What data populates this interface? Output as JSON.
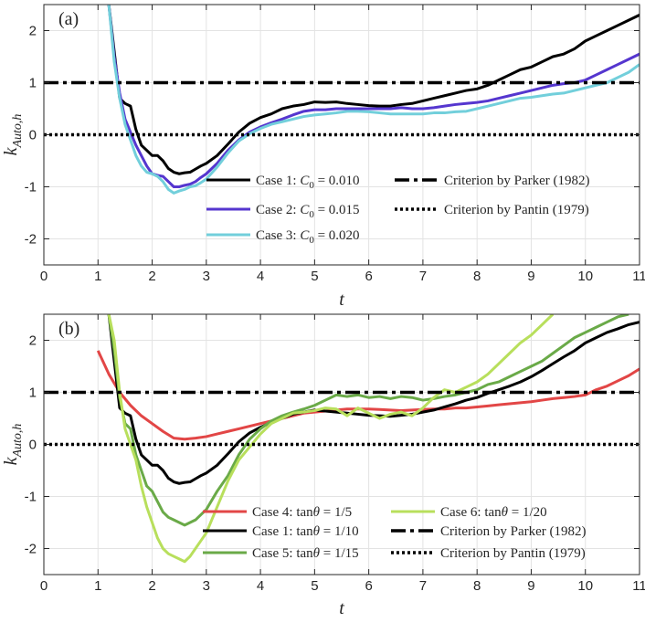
{
  "chart_data": [
    {
      "type": "line",
      "panel_label": "(a)",
      "xlabel": "t",
      "ylabel": "k",
      "ylabel_sub": "Auto,h",
      "xlim": [
        0,
        11
      ],
      "ylim": [
        -2.5,
        2.5
      ],
      "xticks": [
        "0",
        "1",
        "2",
        "3",
        "4",
        "5",
        "6",
        "7",
        "8",
        "9",
        "10",
        "11"
      ],
      "yticks": [
        "-2",
        "-1",
        "0",
        "1",
        "2"
      ],
      "grid": true,
      "legend_position": "bottom-center, two columns",
      "series": [
        {
          "name": "Case 1: C0 = 0.010",
          "label_prefix": "Case 1: ",
          "label_var": "C",
          "label_sub": "0",
          "label_suffix": " = 0.010",
          "color": "#000000",
          "style": "solid",
          "legend_col": 0,
          "legend_row": 0,
          "x": [
            1.2,
            1.3,
            1.4,
            1.5,
            1.6,
            1.7,
            1.8,
            1.9,
            2.0,
            2.1,
            2.2,
            2.3,
            2.4,
            2.5,
            2.6,
            2.7,
            2.8,
            2.9,
            3.0,
            3.2,
            3.4,
            3.6,
            3.8,
            4.0,
            4.2,
            4.4,
            4.6,
            4.8,
            5.0,
            5.2,
            5.4,
            5.6,
            5.8,
            6.0,
            6.2,
            6.4,
            6.6,
            6.8,
            7.0,
            7.2,
            7.4,
            7.6,
            7.8,
            8.0,
            8.2,
            8.4,
            8.6,
            8.8,
            9.0,
            9.2,
            9.4,
            9.6,
            9.8,
            10.0,
            10.2,
            10.4,
            10.6,
            10.8,
            11.0
          ],
          "y": [
            2.5,
            1.6,
            0.7,
            0.6,
            0.55,
            0.1,
            -0.2,
            -0.3,
            -0.4,
            -0.4,
            -0.5,
            -0.65,
            -0.72,
            -0.75,
            -0.73,
            -0.72,
            -0.66,
            -0.6,
            -0.55,
            -0.4,
            -0.18,
            0.05,
            0.22,
            0.33,
            0.4,
            0.5,
            0.55,
            0.58,
            0.63,
            0.62,
            0.63,
            0.6,
            0.58,
            0.56,
            0.55,
            0.55,
            0.58,
            0.6,
            0.65,
            0.7,
            0.75,
            0.8,
            0.85,
            0.88,
            0.95,
            1.05,
            1.15,
            1.25,
            1.3,
            1.4,
            1.5,
            1.55,
            1.65,
            1.8,
            1.9,
            2.0,
            2.1,
            2.2,
            2.3
          ]
        },
        {
          "name": "Case 2: C0 = 0.015",
          "label_prefix": "Case 2: ",
          "label_var": "C",
          "label_sub": "0",
          "label_suffix": " = 0.015",
          "color": "#5536cf",
          "style": "solid",
          "legend_col": 0,
          "legend_row": 1,
          "x": [
            1.2,
            1.3,
            1.4,
            1.5,
            1.6,
            1.7,
            1.8,
            1.9,
            2.0,
            2.1,
            2.2,
            2.3,
            2.4,
            2.5,
            2.6,
            2.7,
            2.8,
            2.9,
            3.0,
            3.2,
            3.4,
            3.6,
            3.8,
            4.0,
            4.2,
            4.4,
            4.6,
            4.8,
            5.0,
            5.2,
            5.4,
            5.6,
            5.8,
            6.0,
            6.2,
            6.4,
            6.6,
            6.8,
            7.0,
            7.2,
            7.4,
            7.6,
            7.8,
            8.0,
            8.2,
            8.4,
            8.6,
            8.8,
            9.0,
            9.2,
            9.4,
            9.6,
            9.8,
            10.0,
            10.2,
            10.4,
            10.6,
            10.8,
            11.0
          ],
          "y": [
            2.5,
            1.5,
            0.8,
            0.3,
            0.05,
            -0.2,
            -0.4,
            -0.6,
            -0.75,
            -0.78,
            -0.8,
            -0.9,
            -1.0,
            -1.0,
            -0.97,
            -0.95,
            -0.9,
            -0.82,
            -0.75,
            -0.55,
            -0.3,
            -0.1,
            0.05,
            0.15,
            0.23,
            0.3,
            0.38,
            0.45,
            0.48,
            0.48,
            0.5,
            0.5,
            0.5,
            0.5,
            0.5,
            0.5,
            0.52,
            0.5,
            0.5,
            0.52,
            0.55,
            0.58,
            0.6,
            0.62,
            0.65,
            0.7,
            0.75,
            0.8,
            0.85,
            0.9,
            0.95,
            0.98,
            1.0,
            1.05,
            1.15,
            1.25,
            1.35,
            1.45,
            1.55
          ]
        },
        {
          "name": "Case 3: C0 = 0.020",
          "label_prefix": "Case 3: ",
          "label_var": "C",
          "label_sub": "0",
          "label_suffix": " = 0.020",
          "color": "#72cfdb",
          "style": "solid",
          "legend_col": 0,
          "legend_row": 2,
          "x": [
            1.2,
            1.3,
            1.4,
            1.5,
            1.6,
            1.7,
            1.8,
            1.9,
            2.0,
            2.1,
            2.2,
            2.3,
            2.4,
            2.5,
            2.6,
            2.7,
            2.8,
            2.9,
            3.0,
            3.2,
            3.4,
            3.6,
            3.8,
            4.0,
            4.2,
            4.4,
            4.6,
            4.8,
            5.0,
            5.2,
            5.4,
            5.6,
            5.8,
            6.0,
            6.2,
            6.4,
            6.6,
            6.8,
            7.0,
            7.2,
            7.4,
            7.6,
            7.8,
            8.0,
            8.2,
            8.4,
            8.6,
            8.8,
            9.0,
            9.2,
            9.4,
            9.6,
            9.8,
            10.0,
            10.2,
            10.4,
            10.6,
            10.8,
            11.0
          ],
          "y": [
            2.5,
            1.4,
            0.7,
            0.2,
            -0.1,
            -0.4,
            -0.6,
            -0.72,
            -0.75,
            -0.8,
            -0.9,
            -1.05,
            -1.12,
            -1.08,
            -1.05,
            -1.0,
            -0.98,
            -0.92,
            -0.85,
            -0.62,
            -0.35,
            -0.12,
            0.02,
            0.12,
            0.2,
            0.25,
            0.3,
            0.35,
            0.38,
            0.4,
            0.42,
            0.45,
            0.45,
            0.44,
            0.42,
            0.4,
            0.4,
            0.4,
            0.4,
            0.42,
            0.42,
            0.44,
            0.45,
            0.5,
            0.55,
            0.6,
            0.65,
            0.7,
            0.72,
            0.75,
            0.78,
            0.8,
            0.85,
            0.9,
            0.95,
            1.0,
            1.1,
            1.2,
            1.35
          ]
        },
        {
          "name": "Criterion by Parker (1982)",
          "color": "#000000",
          "style": "dashdot",
          "legend_col": 1,
          "legend_row": 0,
          "x": [
            0,
            11
          ],
          "y": [
            1,
            1
          ]
        },
        {
          "name": "Criterion by Pantin (1979)",
          "color": "#000000",
          "style": "dotted",
          "legend_col": 1,
          "legend_row": 1,
          "x": [
            0,
            11
          ],
          "y": [
            0,
            0
          ]
        }
      ]
    },
    {
      "type": "line",
      "panel_label": "(b)",
      "xlabel": "t",
      "ylabel": "k",
      "ylabel_sub": "Auto,h",
      "xlim": [
        0,
        11
      ],
      "ylim": [
        -2.5,
        2.5
      ],
      "xticks": [
        "0",
        "1",
        "2",
        "3",
        "4",
        "5",
        "6",
        "7",
        "8",
        "9",
        "10",
        "11"
      ],
      "yticks": [
        "-2",
        "-1",
        "0",
        "1",
        "2"
      ],
      "grid": true,
      "legend_position": "bottom-center, two columns",
      "series": [
        {
          "name": "Case 4: tanθ = 1/5",
          "label_prefix": "Case 4: tan",
          "label_var": "θ",
          "label_sub": "",
          "label_suffix": " = 1/5",
          "color": "#e24646",
          "style": "solid",
          "legend_col": 0,
          "legend_row": 0,
          "x": [
            1.0,
            1.2,
            1.4,
            1.6,
            1.8,
            2.0,
            2.2,
            2.4,
            2.6,
            2.8,
            3.0,
            3.2,
            3.4,
            3.6,
            3.8,
            4.0,
            4.2,
            4.4,
            4.6,
            4.8,
            5.0,
            5.2,
            5.4,
            5.6,
            5.8,
            6.0,
            6.2,
            6.4,
            6.6,
            6.8,
            7.0,
            7.2,
            7.4,
            7.6,
            7.8,
            8.0,
            8.2,
            8.4,
            8.6,
            8.8,
            9.0,
            9.2,
            9.4,
            9.6,
            9.8,
            10.0,
            10.2,
            10.4,
            10.6,
            10.8,
            11.0
          ],
          "y": [
            1.8,
            1.35,
            1.0,
            0.75,
            0.55,
            0.4,
            0.25,
            0.12,
            0.1,
            0.12,
            0.15,
            0.2,
            0.25,
            0.3,
            0.35,
            0.4,
            0.45,
            0.5,
            0.55,
            0.6,
            0.62,
            0.64,
            0.66,
            0.68,
            0.68,
            0.68,
            0.67,
            0.66,
            0.65,
            0.66,
            0.67,
            0.68,
            0.68,
            0.7,
            0.7,
            0.72,
            0.74,
            0.76,
            0.78,
            0.8,
            0.82,
            0.85,
            0.88,
            0.9,
            0.92,
            0.95,
            1.05,
            1.12,
            1.22,
            1.32,
            1.45
          ]
        },
        {
          "name": "Case 1: tanθ = 1/10",
          "label_prefix": "Case 1: tan",
          "label_var": "θ",
          "label_sub": "",
          "label_suffix": " = 1/10",
          "color": "#000000",
          "style": "solid",
          "legend_col": 0,
          "legend_row": 1,
          "x": [
            1.2,
            1.3,
            1.4,
            1.5,
            1.6,
            1.7,
            1.8,
            1.9,
            2.0,
            2.1,
            2.2,
            2.3,
            2.4,
            2.5,
            2.6,
            2.7,
            2.8,
            2.9,
            3.0,
            3.2,
            3.4,
            3.6,
            3.8,
            4.0,
            4.2,
            4.4,
            4.6,
            4.8,
            5.0,
            5.2,
            5.4,
            5.6,
            5.8,
            6.0,
            6.2,
            6.4,
            6.6,
            6.8,
            7.0,
            7.2,
            7.4,
            7.6,
            7.8,
            8.0,
            8.2,
            8.4,
            8.6,
            8.8,
            9.0,
            9.2,
            9.4,
            9.6,
            9.8,
            10.0,
            10.2,
            10.4,
            10.6,
            10.8,
            11.0
          ],
          "y": [
            2.5,
            1.6,
            0.7,
            0.6,
            0.55,
            0.1,
            -0.2,
            -0.3,
            -0.4,
            -0.4,
            -0.5,
            -0.65,
            -0.72,
            -0.75,
            -0.73,
            -0.72,
            -0.66,
            -0.6,
            -0.55,
            -0.4,
            -0.18,
            0.05,
            0.22,
            0.33,
            0.42,
            0.5,
            0.58,
            0.62,
            0.66,
            0.64,
            0.62,
            0.6,
            0.58,
            0.56,
            0.55,
            0.54,
            0.56,
            0.58,
            0.62,
            0.66,
            0.72,
            0.78,
            0.85,
            0.9,
            0.98,
            1.05,
            1.12,
            1.2,
            1.3,
            1.42,
            1.55,
            1.68,
            1.8,
            1.95,
            2.05,
            2.15,
            2.22,
            2.3,
            2.35
          ]
        },
        {
          "name": "Case 5: tanθ = 1/15",
          "label_prefix": "Case 5: tan",
          "label_var": "θ",
          "label_sub": "",
          "label_suffix": " = 1/15",
          "color": "#6aaa48",
          "style": "solid",
          "legend_col": 0,
          "legend_row": 2,
          "x": [
            1.2,
            1.3,
            1.4,
            1.5,
            1.6,
            1.7,
            1.8,
            1.9,
            2.0,
            2.1,
            2.2,
            2.3,
            2.4,
            2.5,
            2.6,
            2.7,
            2.8,
            2.9,
            3.0,
            3.2,
            3.4,
            3.6,
            3.8,
            4.0,
            4.2,
            4.4,
            4.6,
            4.8,
            5.0,
            5.2,
            5.4,
            5.6,
            5.8,
            6.0,
            6.2,
            6.4,
            6.6,
            6.8,
            7.0,
            7.2,
            7.4,
            7.6,
            7.8,
            8.0,
            8.2,
            8.4,
            8.6,
            8.8,
            9.0,
            9.2,
            9.4,
            9.6,
            9.8,
            10.0,
            10.2,
            10.4,
            10.6,
            10.8
          ],
          "y": [
            2.5,
            1.8,
            0.9,
            0.4,
            0.3,
            -0.2,
            -0.5,
            -0.8,
            -0.9,
            -1.1,
            -1.3,
            -1.4,
            -1.45,
            -1.5,
            -1.55,
            -1.5,
            -1.45,
            -1.35,
            -1.25,
            -0.9,
            -0.6,
            -0.2,
            0.1,
            0.3,
            0.45,
            0.55,
            0.62,
            0.68,
            0.75,
            0.85,
            0.95,
            0.92,
            0.95,
            0.9,
            0.92,
            0.88,
            0.92,
            0.9,
            0.85,
            0.88,
            0.92,
            0.95,
            1.0,
            1.05,
            1.15,
            1.2,
            1.3,
            1.4,
            1.5,
            1.6,
            1.75,
            1.9,
            2.05,
            2.15,
            2.25,
            2.35,
            2.45,
            2.5
          ]
        },
        {
          "name": "Case 6: tanθ = 1/20",
          "label_prefix": "Case 6: tan",
          "label_var": "θ",
          "label_sub": "",
          "label_suffix": " = 1/20",
          "color": "#b8df5c",
          "style": "solid",
          "legend_col": 1,
          "legend_row": 0,
          "x": [
            1.2,
            1.3,
            1.4,
            1.5,
            1.6,
            1.7,
            1.8,
            1.9,
            2.0,
            2.1,
            2.2,
            2.3,
            2.4,
            2.5,
            2.6,
            2.7,
            2.8,
            2.9,
            3.0,
            3.2,
            3.4,
            3.6,
            3.8,
            4.0,
            4.2,
            4.4,
            4.6,
            4.8,
            5.0,
            5.2,
            5.4,
            5.6,
            5.8,
            6.0,
            6.2,
            6.4,
            6.6,
            6.8,
            7.0,
            7.2,
            7.4,
            7.6,
            7.8,
            8.0,
            8.2,
            8.4,
            8.6,
            8.8,
            9.0,
            9.2,
            9.4
          ],
          "y": [
            2.5,
            2.0,
            1.0,
            0.3,
            0.0,
            -0.3,
            -0.8,
            -1.2,
            -1.5,
            -1.8,
            -2.0,
            -2.1,
            -2.15,
            -2.2,
            -2.25,
            -2.15,
            -2.0,
            -1.85,
            -1.7,
            -1.2,
            -0.7,
            -0.3,
            -0.05,
            0.2,
            0.4,
            0.5,
            0.6,
            0.62,
            0.65,
            0.7,
            0.68,
            0.55,
            0.7,
            0.6,
            0.5,
            0.58,
            0.62,
            0.55,
            0.7,
            0.9,
            1.05,
            1.0,
            1.1,
            1.2,
            1.35,
            1.55,
            1.75,
            1.95,
            2.1,
            2.3,
            2.5
          ]
        },
        {
          "name": "Criterion by Parker (1982)",
          "color": "#000000",
          "style": "dashdot",
          "legend_col": 1,
          "legend_row": 1,
          "x": [
            0,
            11
          ],
          "y": [
            1,
            1
          ]
        },
        {
          "name": "Criterion by Pantin (1979)",
          "color": "#000000",
          "style": "dotted",
          "legend_col": 1,
          "legend_row": 2,
          "x": [
            0,
            11
          ],
          "y": [
            0,
            0
          ]
        }
      ]
    }
  ]
}
